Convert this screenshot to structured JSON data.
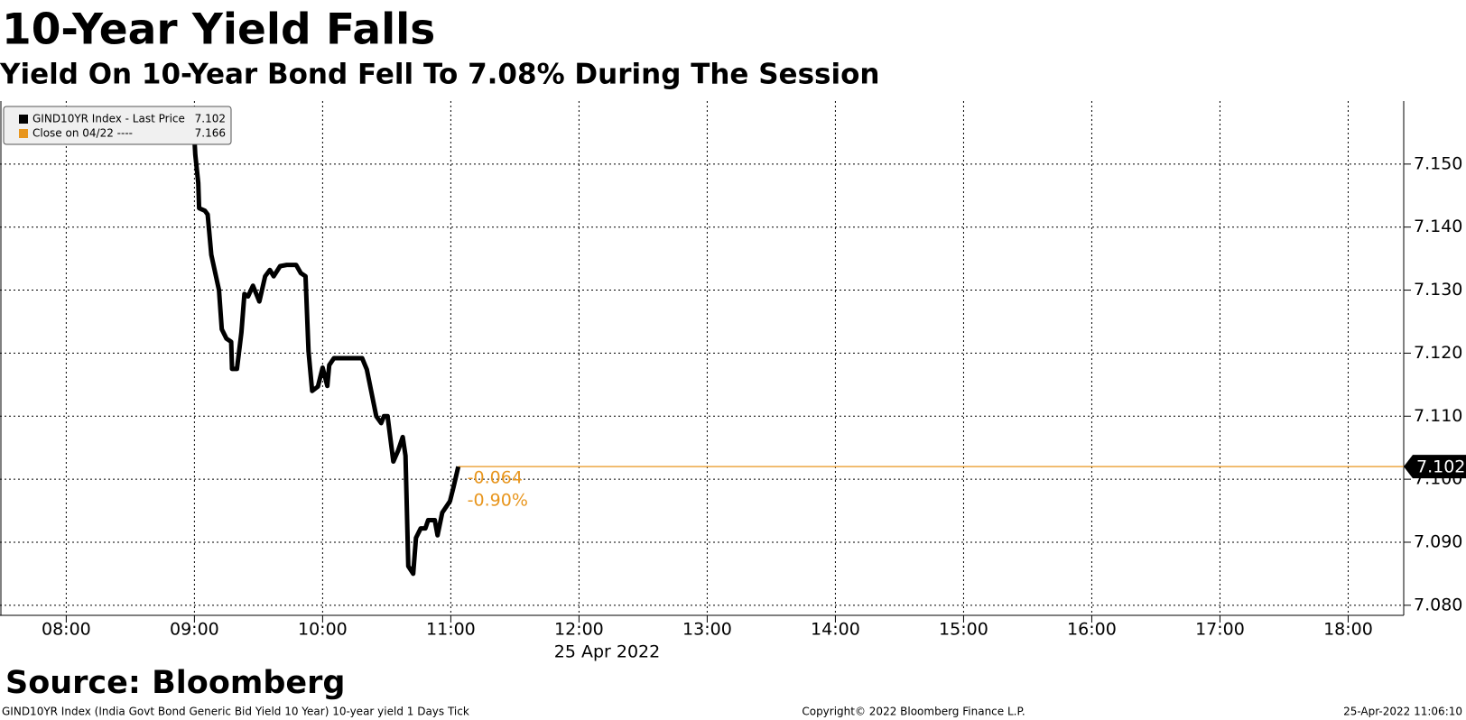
{
  "chart_data": {
    "type": "line",
    "title": "10-Year Yield Falls",
    "subtitle": "Yield On 10-Year Bond Fell To 7.08% During The Session",
    "source": "Source: Bloomberg",
    "footer_left": "GIND10YR Index (India Govt Bond Generic Bid Yield 10 Year) 10-year yield 1 Days  Tick",
    "footer_center": "Copyright© 2022 Bloomberg Finance L.P.",
    "footer_right": "25-Apr-2022 11:06:10",
    "x_label": "25 Apr 2022",
    "xlim": [
      449,
      1106
    ],
    "xticks": [
      {
        "value": 480,
        "label": "08:00"
      },
      {
        "value": 540,
        "label": "09:00"
      },
      {
        "value": 600,
        "label": "10:00"
      },
      {
        "value": 660,
        "label": "11:00"
      },
      {
        "value": 720,
        "label": "12:00"
      },
      {
        "value": 780,
        "label": "13:00"
      },
      {
        "value": 840,
        "label": "14:00"
      },
      {
        "value": 900,
        "label": "15:00"
      },
      {
        "value": 960,
        "label": "16:00"
      },
      {
        "value": 1020,
        "label": "17:00"
      },
      {
        "value": 1080,
        "label": "18:00"
      }
    ],
    "ylim": [
      7.0784,
      7.16
    ],
    "yticks": [
      {
        "value": 7.08,
        "label": "7.080"
      },
      {
        "value": 7.09,
        "label": "7.090"
      },
      {
        "value": 7.1,
        "label": "7.100"
      },
      {
        "value": 7.11,
        "label": "7.110"
      },
      {
        "value": 7.12,
        "label": "7.120"
      },
      {
        "value": 7.13,
        "label": "7.130"
      },
      {
        "value": 7.14,
        "label": "7.140"
      },
      {
        "value": 7.15,
        "label": "7.150"
      }
    ],
    "grid": true,
    "x": [
      540,
      540.4,
      541.8,
      542.2,
      544.9,
      546.2,
      547.9,
      551.5,
      552.8,
      555,
      557.2,
      557.6,
      559.9,
      562,
      563.4,
      565.1,
      567.4,
      570.4,
      573.1,
      575.3,
      577.1,
      580.1,
      583.2,
      587.6,
      589.8,
      592,
      593.4,
      595.1,
      597.8,
      600,
      602.2,
      603.1,
      605.3,
      618.5,
      620.7,
      622.9,
      625.1,
      627.4,
      628.7,
      630.4,
      633.1,
      635.3,
      637.5,
      638.8,
      640.1,
      642.4,
      643.7,
      645.9,
      648.1,
      649.4,
      652.5,
      653.8,
      656,
      659.6,
      661.3,
      663.5
    ],
    "series": [
      {
        "name": "GIND10YR Index - Last Price",
        "color": "#000000",
        "legend_value": 7.102,
        "values": [
          7.154,
          7.1515,
          7.147,
          7.143,
          7.1426,
          7.142,
          7.1356,
          7.13,
          7.1238,
          7.1223,
          7.1218,
          7.1175,
          7.1175,
          7.1233,
          7.1294,
          7.129,
          7.1307,
          7.1282,
          7.1322,
          7.1332,
          7.1322,
          7.1338,
          7.134,
          7.134,
          7.1327,
          7.1322,
          7.1203,
          7.114,
          7.1147,
          7.1177,
          7.1148,
          7.1181,
          7.1192,
          7.1192,
          7.1174,
          7.1137,
          7.11,
          7.1089,
          7.11,
          7.11,
          7.1028,
          7.1045,
          7.1067,
          7.1037,
          7.0862,
          7.085,
          7.0907,
          7.0922,
          7.0922,
          7.0935,
          7.0935,
          7.0911,
          7.0947,
          7.0965,
          7.0988,
          7.102
        ]
      }
    ],
    "close": {
      "name": "Close on 04/22 ----",
      "color": "#e8961e",
      "legend_value": 7.166
    },
    "last_line": {
      "value": 7.102,
      "color": "#e8961e"
    },
    "annotations": [
      "-0.064",
      "-0.90%"
    ]
  }
}
